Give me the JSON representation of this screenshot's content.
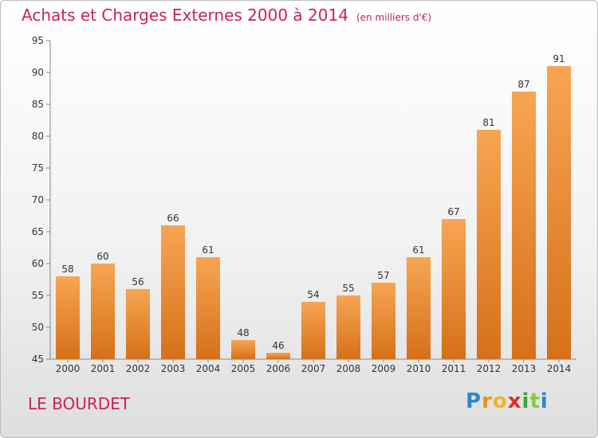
{
  "chart_data": {
    "type": "bar",
    "title": "Achats et Charges Externes 2000 à 2014",
    "subtitle": "(en milliers d'€)",
    "categories": [
      "2000",
      "2001",
      "2002",
      "2003",
      "2004",
      "2005",
      "2006",
      "2007",
      "2008",
      "2009",
      "2010",
      "2011",
      "2012",
      "2013",
      "2014"
    ],
    "values": [
      58,
      60,
      56,
      66,
      61,
      48,
      46,
      54,
      55,
      57,
      61,
      67,
      81,
      87,
      91
    ],
    "ylim": [
      45,
      95
    ],
    "yticks": [
      45,
      50,
      55,
      60,
      65,
      70,
      75,
      80,
      85,
      90,
      95
    ],
    "grid": false,
    "bar_color": "#f0923a",
    "label": "LE BOURDET"
  },
  "logo": {
    "letters": [
      "P",
      "r",
      "o",
      "x",
      "i",
      "t",
      "i"
    ],
    "colors": [
      "#2e86c9",
      "#f28c1d",
      "#f2b51d",
      "#d9302b",
      "#3aa63a",
      "#8cc63f",
      "#2e86c9"
    ]
  }
}
